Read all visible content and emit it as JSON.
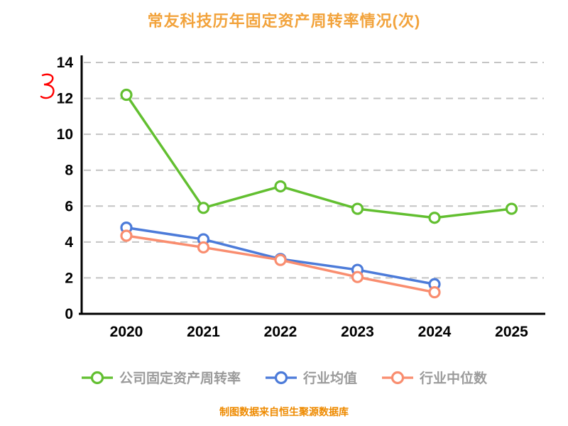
{
  "page": {
    "title": "常友科技历年固定资产周转率情况(次)",
    "caption": "制图数据来自恒生聚源数据库"
  },
  "chart_data": {
    "type": "line",
    "title": "常友科技历年固定资产周转率情况(次)",
    "categories": [
      "2020",
      "2021",
      "2022",
      "2023",
      "2024",
      "2025"
    ],
    "series": [
      {
        "name": "公司固定资产周转率",
        "color": "#62BF30",
        "values": [
          12.2,
          5.9,
          7.1,
          5.85,
          5.35,
          5.85
        ]
      },
      {
        "name": "行业均值",
        "color": "#4C7BD9",
        "values": [
          4.8,
          4.15,
          3.05,
          2.45,
          1.65,
          null
        ]
      },
      {
        "name": "行业中位数",
        "color": "#F98D6F",
        "values": [
          4.35,
          3.7,
          3.0,
          2.05,
          1.2,
          null
        ]
      }
    ],
    "ylim": [
      0,
      14
    ],
    "yticks": [
      0,
      2,
      4,
      6,
      8,
      10,
      12,
      14
    ],
    "xlabel": "",
    "ylabel": "",
    "grid": "dashed-horizontal",
    "legend_position": "bottom",
    "source_note": "制图数据来自恒生聚源数据库"
  },
  "colors": {
    "title": "#F2A33C",
    "caption": "#EE8A00",
    "axis": "#000000",
    "grid": "#c4c4c4",
    "legend_text": "#9b9b9b",
    "marker_fill": "#ffffff",
    "red_mark": "#ff0000"
  },
  "icons": {
    "red_mark": "red-squiggle-mark",
    "legend_markers": [
      "green-circle-marker",
      "blue-circle-marker",
      "orange-circle-marker"
    ]
  }
}
